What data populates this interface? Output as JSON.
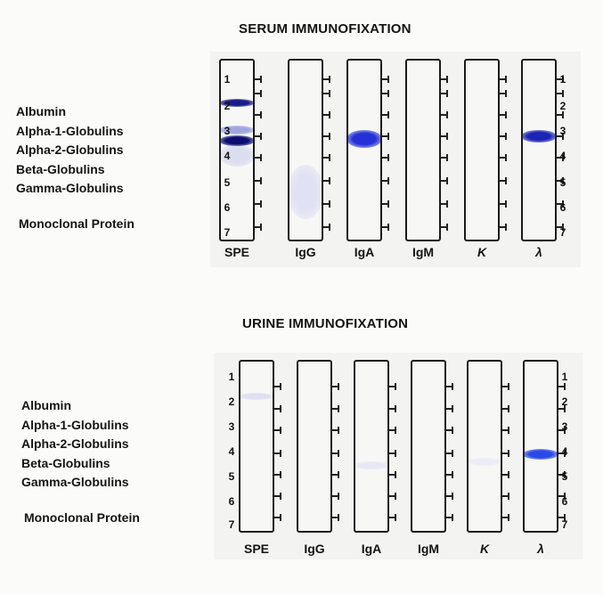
{
  "serum": {
    "title": "SERUM IMMUNOFIXATION",
    "fractions": [
      "Albumin",
      "Alpha-1-Globulins",
      "Alpha-2-Globulins",
      "Beta-Globulins",
      "Gamma-Globulins"
    ],
    "monoclonal_label": "Monoclonal Protein",
    "left_numbers": [
      "1",
      "2",
      "3",
      "4",
      "5",
      "6",
      "7"
    ],
    "right_numbers": [
      "1",
      "2",
      "3",
      "4",
      "5",
      "6",
      "7"
    ],
    "lanes": [
      {
        "label": "SPE",
        "bands": [
          {
            "pos": 0.23,
            "w": 0.045,
            "color": "#1b1d8a",
            "opacity": 1
          },
          {
            "pos": 0.38,
            "w": 0.05,
            "color": "#5a62cc",
            "opacity": 0.55
          },
          {
            "pos": 0.44,
            "w": 0.06,
            "color": "#0b0e70",
            "opacity": 1
          },
          {
            "pos": 0.52,
            "w": 0.12,
            "color": "#8a90d6",
            "opacity": 0.25
          }
        ]
      },
      {
        "label": "IgG",
        "bands": [
          {
            "pos": 0.72,
            "w": 0.3,
            "color": "#c9cbef",
            "opacity": 0.5
          }
        ]
      },
      {
        "label": "IgA",
        "bands": [
          {
            "pos": 0.43,
            "w": 0.1,
            "color": "#2530d6",
            "opacity": 1
          }
        ]
      },
      {
        "label": "IgM",
        "bands": []
      },
      {
        "label": "K",
        "bands": []
      },
      {
        "label": "λ",
        "bands": [
          {
            "pos": 0.415,
            "w": 0.07,
            "color": "#1d24b4",
            "opacity": 1
          }
        ]
      }
    ]
  },
  "urine": {
    "title": "URINE IMMUNOFIXATION",
    "fractions": [
      "Albumin",
      "Alpha-1-Globulins",
      "Alpha-2-Globulins",
      "Beta-Globulins",
      "Gamma-Globulins"
    ],
    "monoclonal_label": "Monoclonal Protein",
    "left_numbers": [
      "1",
      "2",
      "3",
      "4",
      "5",
      "6",
      "7"
    ],
    "right_numbers": [
      "1",
      "2",
      "3",
      "4",
      "5",
      "6",
      "7"
    ],
    "lanes": [
      {
        "label": "SPE",
        "bands": [
          {
            "pos": 0.2,
            "w": 0.04,
            "color": "#c7c9ee",
            "opacity": 0.5
          }
        ]
      },
      {
        "label": "IgG",
        "bands": []
      },
      {
        "label": "IgA",
        "bands": [
          {
            "pos": 0.6,
            "w": 0.05,
            "color": "#d6d8f3",
            "opacity": 0.5
          }
        ]
      },
      {
        "label": "IgM",
        "bands": []
      },
      {
        "label": "K",
        "bands": [
          {
            "pos": 0.58,
            "w": 0.05,
            "color": "#dcdff6",
            "opacity": 0.4
          }
        ]
      },
      {
        "label": "λ",
        "bands": [
          {
            "pos": 0.535,
            "w": 0.06,
            "color": "#2a49e6",
            "opacity": 1
          }
        ]
      }
    ]
  }
}
